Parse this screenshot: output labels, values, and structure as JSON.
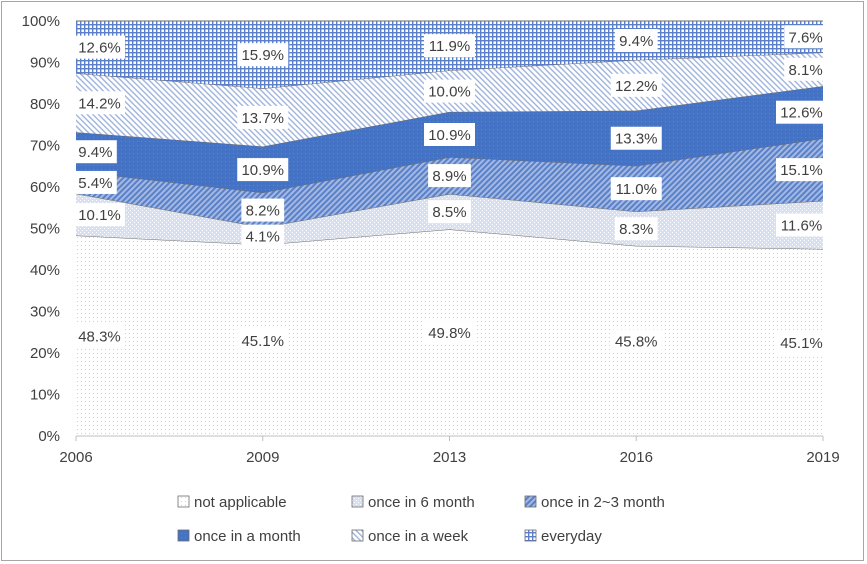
{
  "chart_data": {
    "type": "area",
    "stacked": true,
    "percent": true,
    "x": [
      "2006",
      "2009",
      "2013",
      "2016",
      "2019"
    ],
    "yticks": [
      "0%",
      "10%",
      "20%",
      "30%",
      "40%",
      "50%",
      "60%",
      "70%",
      "80%",
      "90%",
      "100%"
    ],
    "ylim": [
      0,
      100
    ],
    "grid": false,
    "legend_position": "bottom",
    "series": [
      {
        "name": "not applicable",
        "values": [
          48.3,
          45.1,
          49.8,
          45.8,
          45.1
        ],
        "labels": [
          "48.3%",
          "45.1%",
          "49.8%",
          "45.8%",
          "45.1%"
        ],
        "color": "#dbe3f0",
        "pattern": "dots"
      },
      {
        "name": "once in 6 month",
        "values": [
          10.1,
          4.1,
          8.5,
          8.3,
          11.6
        ],
        "labels": [
          "10.1%",
          "4.1%",
          "8.5%",
          "8.3%",
          "11.6%"
        ],
        "color": "#b4c7e7",
        "pattern": "light"
      },
      {
        "name": "once in 2~3 month",
        "values": [
          5.4,
          8.2,
          8.9,
          11.0,
          15.1
        ],
        "labels": [
          "5.4%",
          "8.2%",
          "8.9%",
          "11.0%",
          "15.1%"
        ],
        "color": "#6f92d2",
        "pattern": "diagonal"
      },
      {
        "name": "once in a month",
        "values": [
          9.4,
          10.9,
          10.9,
          13.3,
          12.6
        ],
        "labels": [
          "9.4%",
          "10.9%",
          "10.9%",
          "13.3%",
          "12.6%"
        ],
        "color": "#4472c4",
        "pattern": "solid"
      },
      {
        "name": "once in a week",
        "values": [
          14.2,
          13.7,
          10.0,
          12.2,
          8.1
        ],
        "labels": [
          "14.2%",
          "13.7%",
          "10.0%",
          "12.2%",
          "8.1%"
        ],
        "color": "#9fb4dc",
        "pattern": "hatch"
      },
      {
        "name": "everyday",
        "values": [
          12.6,
          15.9,
          11.9,
          9.4,
          7.6
        ],
        "labels": [
          "12.6%",
          "15.9%",
          "11.9%",
          "9.4%",
          "7.6%"
        ],
        "color": "#5b80c9",
        "pattern": "grid"
      }
    ]
  }
}
